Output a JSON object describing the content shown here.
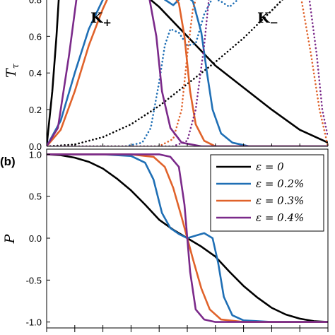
{
  "chart_data": [
    {
      "panel": "top",
      "type": "line",
      "panel_label": "",
      "ylabel": "T",
      "ylabel_subscript": "τ",
      "xlabel": "",
      "ylim": [
        0,
        0.85
      ],
      "yticks": [
        "0.0",
        "0.2",
        "0.4",
        "0.6",
        "0.8"
      ],
      "ytick_values": [
        0,
        0.2,
        0.4,
        0.6,
        0.8
      ],
      "annotations": [
        {
          "main": "K",
          "sub": "+",
          "name": "k-plus-label"
        },
        {
          "main": "K",
          "sub": "−",
          "name": "k-minus-label"
        }
      ],
      "series": [
        {
          "color": "#000000",
          "style": "solid",
          "points": [
            [
              0,
              0
            ],
            [
              0.02,
              0.3
            ],
            [
              0.035,
              0.6
            ],
            [
              0.045,
              0.85
            ],
            [
              0.33,
              0.85
            ],
            [
              0.4,
              0.76
            ],
            [
              0.5,
              0.6
            ],
            [
              0.6,
              0.44
            ],
            [
              0.7,
              0.32
            ],
            [
              0.8,
              0.2
            ],
            [
              0.9,
              0.09
            ],
            [
              1.0,
              0.02
            ]
          ]
        },
        {
          "color": "#000000",
          "style": "dotted",
          "points": [
            [
              0,
              0
            ],
            [
              0.1,
              0.01
            ],
            [
              0.2,
              0.05
            ],
            [
              0.3,
              0.12
            ],
            [
              0.4,
              0.22
            ],
            [
              0.5,
              0.34
            ],
            [
              0.6,
              0.46
            ],
            [
              0.7,
              0.59
            ],
            [
              0.8,
              0.74
            ],
            [
              0.87,
              0.85
            ]
          ]
        },
        {
          "color": "#1f6fb5",
          "style": "solid",
          "points": [
            [
              0,
              0
            ],
            [
              0.05,
              0.14
            ],
            [
              0.1,
              0.4
            ],
            [
              0.15,
              0.64
            ],
            [
              0.2,
              0.8
            ],
            [
              0.23,
              0.85
            ],
            [
              0.39,
              0.85
            ],
            [
              0.42,
              0.8
            ],
            [
              0.45,
              0.77
            ],
            [
              0.47,
              0.8
            ],
            [
              0.49,
              0.83
            ],
            [
              0.52,
              0.79
            ],
            [
              0.55,
              0.62
            ],
            [
              0.57,
              0.4
            ],
            [
              0.59,
              0.2
            ],
            [
              0.62,
              0.07
            ],
            [
              0.66,
              0.02
            ],
            [
              0.72,
              0.0
            ],
            [
              1.0,
              0.0
            ]
          ]
        },
        {
          "color": "#1f6fb5",
          "style": "dotted",
          "points": [
            [
              0,
              0
            ],
            [
              0.28,
              0.0
            ],
            [
              0.34,
              0.02
            ],
            [
              0.37,
              0.1
            ],
            [
              0.4,
              0.35
            ],
            [
              0.42,
              0.55
            ],
            [
              0.44,
              0.64
            ],
            [
              0.47,
              0.62
            ],
            [
              0.5,
              0.55
            ],
            [
              0.53,
              0.56
            ],
            [
              0.56,
              0.72
            ],
            [
              0.59,
              0.81
            ],
            [
              0.62,
              0.79
            ],
            [
              0.65,
              0.76
            ],
            [
              0.68,
              0.8
            ],
            [
              0.72,
              0.85
            ]
          ]
        },
        {
          "color": "#e0622a",
          "style": "solid",
          "points": [
            [
              0,
              0
            ],
            [
              0.05,
              0.09
            ],
            [
              0.1,
              0.3
            ],
            [
              0.15,
              0.55
            ],
            [
              0.2,
              0.75
            ],
            [
              0.23,
              0.85
            ],
            [
              0.44,
              0.85
            ],
            [
              0.47,
              0.78
            ],
            [
              0.49,
              0.6
            ],
            [
              0.51,
              0.3
            ],
            [
              0.53,
              0.12
            ],
            [
              0.56,
              0.03
            ],
            [
              0.6,
              0.0
            ],
            [
              1.0,
              0.0
            ]
          ]
        },
        {
          "color": "#e0622a",
          "style": "dotted",
          "points": [
            [
              0,
              0
            ],
            [
              0.4,
              0.0
            ],
            [
              0.45,
              0.04
            ],
            [
              0.48,
              0.2
            ],
            [
              0.5,
              0.5
            ],
            [
              0.52,
              0.75
            ],
            [
              0.54,
              0.85
            ],
            [
              0.9,
              0.85
            ],
            [
              0.94,
              0.5
            ],
            [
              0.97,
              0.2
            ],
            [
              1.0,
              0.0
            ]
          ]
        },
        {
          "color": "#7b2a8a",
          "style": "solid",
          "points": [
            [
              0,
              0
            ],
            [
              0.04,
              0.1
            ],
            [
              0.08,
              0.5
            ],
            [
              0.11,
              0.85
            ],
            [
              0.36,
              0.85
            ],
            [
              0.39,
              0.6
            ],
            [
              0.41,
              0.3
            ],
            [
              0.44,
              0.1
            ],
            [
              0.48,
              0.02
            ],
            [
              0.55,
              0.0
            ],
            [
              1.0,
              0.0
            ]
          ]
        },
        {
          "color": "#7b2a8a",
          "style": "dotted",
          "points": [
            [
              0,
              0
            ],
            [
              0.45,
              0.0
            ],
            [
              0.5,
              0.03
            ],
            [
              0.53,
              0.2
            ],
            [
              0.56,
              0.55
            ],
            [
              0.58,
              0.85
            ],
            [
              0.93,
              0.85
            ],
            [
              0.96,
              0.5
            ],
            [
              0.98,
              0.2
            ],
            [
              1.0,
              0.05
            ]
          ]
        }
      ]
    },
    {
      "panel": "bottom",
      "type": "line",
      "panel_label": "(b)",
      "ylabel": "P",
      "xlabel": "",
      "ylim": [
        -1.1,
        1.1
      ],
      "yticks": [
        "1.0",
        "0.5",
        "0.0",
        "-0.5",
        "-1.0"
      ],
      "ytick_values": [
        1.0,
        0.5,
        0.0,
        -0.5,
        -1.0
      ],
      "legend_position": "top-right",
      "legend": [
        "ε = 0",
        "ε = 0.2%",
        "ε = 0.3%",
        "ε = 0.4%"
      ],
      "series": [
        {
          "name": "ε = 0",
          "color": "#000000",
          "style": "solid",
          "points": [
            [
              0,
              1.0
            ],
            [
              0.05,
              0.99
            ],
            [
              0.1,
              0.96
            ],
            [
              0.15,
              0.91
            ],
            [
              0.2,
              0.83
            ],
            [
              0.25,
              0.71
            ],
            [
              0.3,
              0.57
            ],
            [
              0.35,
              0.4
            ],
            [
              0.4,
              0.22
            ],
            [
              0.45,
              0.1
            ],
            [
              0.5,
              0.0
            ],
            [
              0.55,
              -0.1
            ],
            [
              0.6,
              -0.22
            ],
            [
              0.65,
              -0.4
            ],
            [
              0.7,
              -0.57
            ],
            [
              0.75,
              -0.71
            ],
            [
              0.8,
              -0.83
            ],
            [
              0.85,
              -0.91
            ],
            [
              0.9,
              -0.96
            ],
            [
              0.95,
              -0.99
            ],
            [
              1.0,
              -1.0
            ]
          ]
        },
        {
          "name": "ε = 0.2%",
          "color": "#1f6fb5",
          "style": "solid",
          "points": [
            [
              0,
              1.0
            ],
            [
              0.2,
              1.0
            ],
            [
              0.3,
              0.98
            ],
            [
              0.35,
              0.9
            ],
            [
              0.38,
              0.7
            ],
            [
              0.41,
              0.3
            ],
            [
              0.44,
              0.12
            ],
            [
              0.47,
              0.05
            ],
            [
              0.5,
              0.0
            ],
            [
              0.53,
              0.03
            ],
            [
              0.56,
              0.06
            ],
            [
              0.59,
              0.0
            ],
            [
              0.61,
              -0.3
            ],
            [
              0.63,
              -0.7
            ],
            [
              0.66,
              -0.92
            ],
            [
              0.7,
              -0.98
            ],
            [
              0.8,
              -1.0
            ],
            [
              1.0,
              -1.0
            ]
          ]
        },
        {
          "name": "ε = 0.3%",
          "color": "#e0622a",
          "style": "solid",
          "points": [
            [
              0,
              1.0
            ],
            [
              0.3,
              1.0
            ],
            [
              0.38,
              0.97
            ],
            [
              0.42,
              0.85
            ],
            [
              0.45,
              0.6
            ],
            [
              0.48,
              0.25
            ],
            [
              0.5,
              0.0
            ],
            [
              0.52,
              -0.25
            ],
            [
              0.55,
              -0.6
            ],
            [
              0.58,
              -0.85
            ],
            [
              0.62,
              -0.97
            ],
            [
              0.7,
              -1.0
            ],
            [
              1.0,
              -1.0
            ]
          ]
        },
        {
          "name": "ε = 0.4%",
          "color": "#7b2a8a",
          "style": "solid",
          "points": [
            [
              0,
              1.0
            ],
            [
              0.4,
              1.0
            ],
            [
              0.44,
              0.97
            ],
            [
              0.47,
              0.85
            ],
            [
              0.49,
              0.4
            ],
            [
              0.5,
              0.0
            ],
            [
              0.51,
              -0.4
            ],
            [
              0.53,
              -0.85
            ],
            [
              0.56,
              -0.97
            ],
            [
              0.6,
              -1.0
            ],
            [
              1.0,
              -1.0
            ]
          ]
        }
      ]
    }
  ]
}
